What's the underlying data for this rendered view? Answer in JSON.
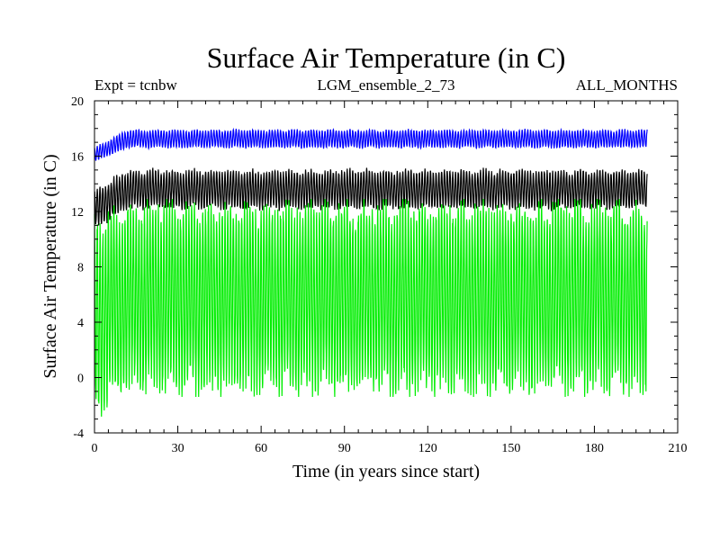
{
  "chart_data": {
    "type": "line",
    "title": "Surface Air Temperature (in C)",
    "subtitle_left": "Expt = tcnbw",
    "subtitle_center": "LGM_ensemble_2_73",
    "subtitle_right": "ALL_MONTHS",
    "xlabel": "Time (in years since start)",
    "ylabel": "Surface Air Temperature (in C)",
    "xlim": [
      0,
      210
    ],
    "ylim": [
      -4,
      20
    ],
    "xticks": [
      0,
      30,
      60,
      90,
      120,
      150,
      180,
      210
    ],
    "yticks": [
      -4,
      0,
      4,
      8,
      12,
      16,
      20
    ],
    "x_data_range": [
      0,
      199
    ],
    "series": [
      {
        "name": "blue series",
        "color": "#0000ff",
        "start_min": 15.6,
        "start_max": 16.6,
        "min": 16.6,
        "max": 17.9,
        "mean": 17.2
      },
      {
        "name": "black series",
        "color": "#000000",
        "start_min": 10.8,
        "start_max": 13.6,
        "min": 12.2,
        "max": 15.0,
        "mean": 13.5
      },
      {
        "name": "green series",
        "color": "#00ee00",
        "start_min": -2.8,
        "start_max": 11.5,
        "min": -1.0,
        "max": 12.6,
        "mean": 6.0
      }
    ]
  }
}
